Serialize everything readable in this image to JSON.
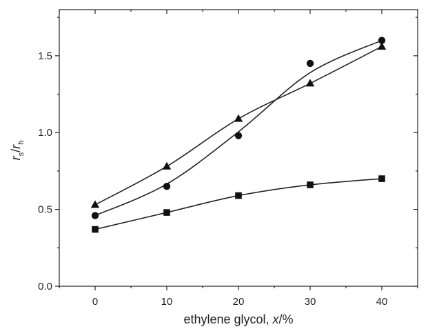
{
  "chart_data": {
    "type": "scatter",
    "xlabel": {
      "prefix": "ethylene glycol, ",
      "italic": "x",
      "suffix": "/%"
    },
    "ylabel": {
      "r1": "r",
      "sub1": "s",
      "slash": "/",
      "r2": "r",
      "sub2": "h"
    },
    "xlim": [
      -5,
      45
    ],
    "ylim": [
      0,
      1.8
    ],
    "xticks": [
      0,
      10,
      20,
      30,
      40
    ],
    "xtick_labels": [
      "0",
      "10",
      "20",
      "30",
      "40"
    ],
    "yticks": [
      0.0,
      0.5,
      1.0,
      1.5
    ],
    "ytick_labels": [
      "0.0",
      "0.5",
      "1.0",
      "1.5"
    ],
    "grid": false,
    "series": [
      {
        "marker": "circle",
        "x": [
          0,
          10,
          20,
          30,
          40
        ],
        "y": [
          0.46,
          0.65,
          0.98,
          1.45,
          1.6
        ],
        "fit": [
          0.46,
          0.665,
          1.005,
          1.39,
          1.6
        ]
      },
      {
        "marker": "triangle",
        "x": [
          0,
          10,
          20,
          30,
          40
        ],
        "y": [
          0.53,
          0.78,
          1.09,
          1.32,
          1.56
        ],
        "fit": [
          0.53,
          0.78,
          1.09,
          1.32,
          1.56
        ]
      },
      {
        "marker": "square",
        "x": [
          0,
          10,
          20,
          30,
          40
        ],
        "y": [
          0.37,
          0.48,
          0.59,
          0.66,
          0.7
        ],
        "fit": [
          0.37,
          0.48,
          0.59,
          0.66,
          0.7
        ]
      }
    ]
  }
}
